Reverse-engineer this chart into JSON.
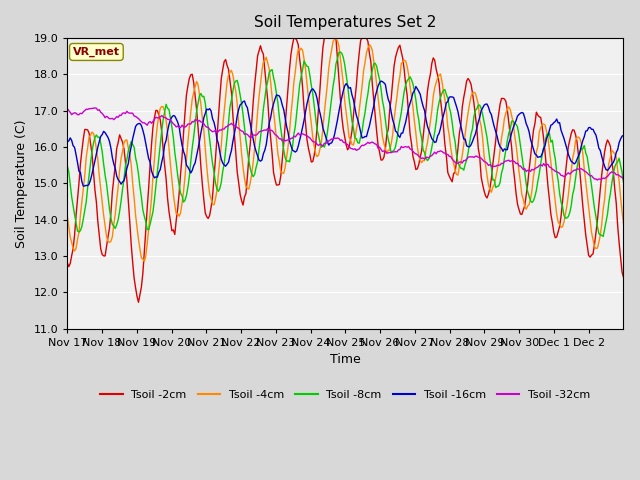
{
  "title": "Soil Temperatures Set 2",
  "xlabel": "Time",
  "ylabel": "Soil Temperature (C)",
  "ylim": [
    11.0,
    19.0
  ],
  "yticks": [
    11.0,
    12.0,
    13.0,
    14.0,
    15.0,
    16.0,
    17.0,
    18.0,
    19.0
  ],
  "xtick_labels": [
    "Nov 17",
    "Nov 18",
    "Nov 19",
    "Nov 20",
    "Nov 21",
    "Nov 22",
    "Nov 23",
    "Nov 24",
    "Nov 25",
    "Nov 26",
    "Nov 27",
    "Nov 28",
    "Nov 29",
    "Nov 30",
    "Dec 1",
    "Dec 2"
  ],
  "colors": {
    "Tsoil -2cm": "#dd0000",
    "Tsoil -4cm": "#ff8800",
    "Tsoil -8cm": "#00cc00",
    "Tsoil -16cm": "#0000cc",
    "Tsoil -32cm": "#cc00cc"
  },
  "vr_met_box_color": "#ffffcc",
  "vr_met_text_color": "#880000",
  "fig_bg_color": "#d8d8d8",
  "plot_bg_color": "#f0f0f0",
  "grid_color": "#ffffff"
}
